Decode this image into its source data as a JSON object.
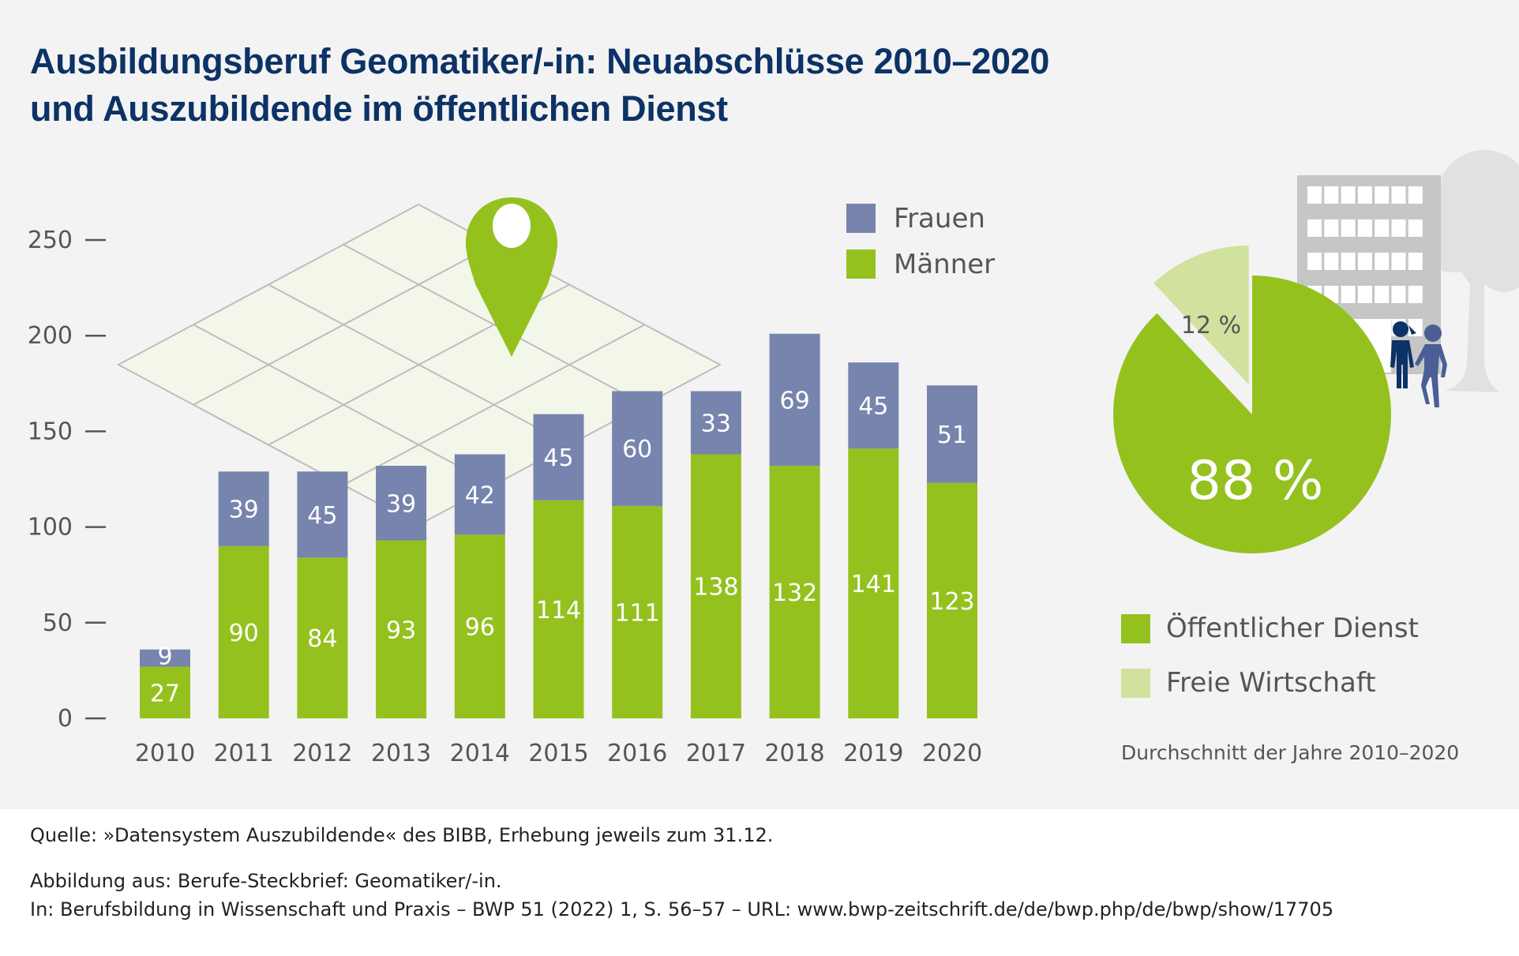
{
  "title": {
    "line1": "Ausbildungsberuf Geomatiker/-in: Neuabschlüsse 2010–2020",
    "line2": "und Auszubildende im öffentlichen Dienst"
  },
  "colors": {
    "frauen": "#7784ad",
    "maenner": "#95c11f",
    "oeffentlich": "#95c11f",
    "frei": "#d1e19e",
    "title": "#0c3266",
    "panel": "#f3f3f3"
  },
  "chart_data": [
    {
      "type": "bar",
      "stacked": true,
      "title": "Neuabschlüsse 2010–2020",
      "xlabel": "",
      "ylabel": "",
      "categories": [
        "2010",
        "2011",
        "2012",
        "2013",
        "2014",
        "2015",
        "2016",
        "2017",
        "2018",
        "2019",
        "2020"
      ],
      "series": [
        {
          "name": "Männer",
          "values": [
            27,
            90,
            84,
            93,
            96,
            114,
            111,
            138,
            132,
            141,
            123
          ]
        },
        {
          "name": "Frauen",
          "values": [
            9,
            39,
            45,
            39,
            42,
            45,
            60,
            33,
            69,
            45,
            51
          ]
        }
      ],
      "ylim": [
        0,
        250
      ],
      "yticks": [
        0,
        50,
        100,
        150,
        200,
        250
      ],
      "grid": false,
      "legend": {
        "placement": "top-right",
        "entries": [
          "Frauen",
          "Männer"
        ]
      }
    },
    {
      "type": "pie",
      "title": "Auszubildende im öffentlichen Dienst",
      "labels": [
        "Öffentlicher Dienst",
        "Freie Wirtschaft"
      ],
      "values": [
        88,
        12
      ],
      "value_labels": [
        "88 %",
        "12 %"
      ],
      "legend": {
        "placement": "bottom",
        "entries": [
          "Öffentlicher Dienst",
          "Freie Wirtschaft"
        ]
      },
      "note": "Durchschnitt der Jahre 2010–2020"
    }
  ],
  "footer": {
    "source": "Quelle: »Datensystem Auszubildende« des BIBB, Erhebung jeweils zum 31.12.",
    "figure_from": "Abbildung aus: Berufe-Steckbrief: Geomatiker/-in.",
    "citation": "In: Berufsbildung in Wissenschaft und Praxis – BWP 51 (2022) 1, S. 56–57 – URL: www.bwp-zeitschrift.de/de/bwp.php/de/bwp/show/17705"
  }
}
